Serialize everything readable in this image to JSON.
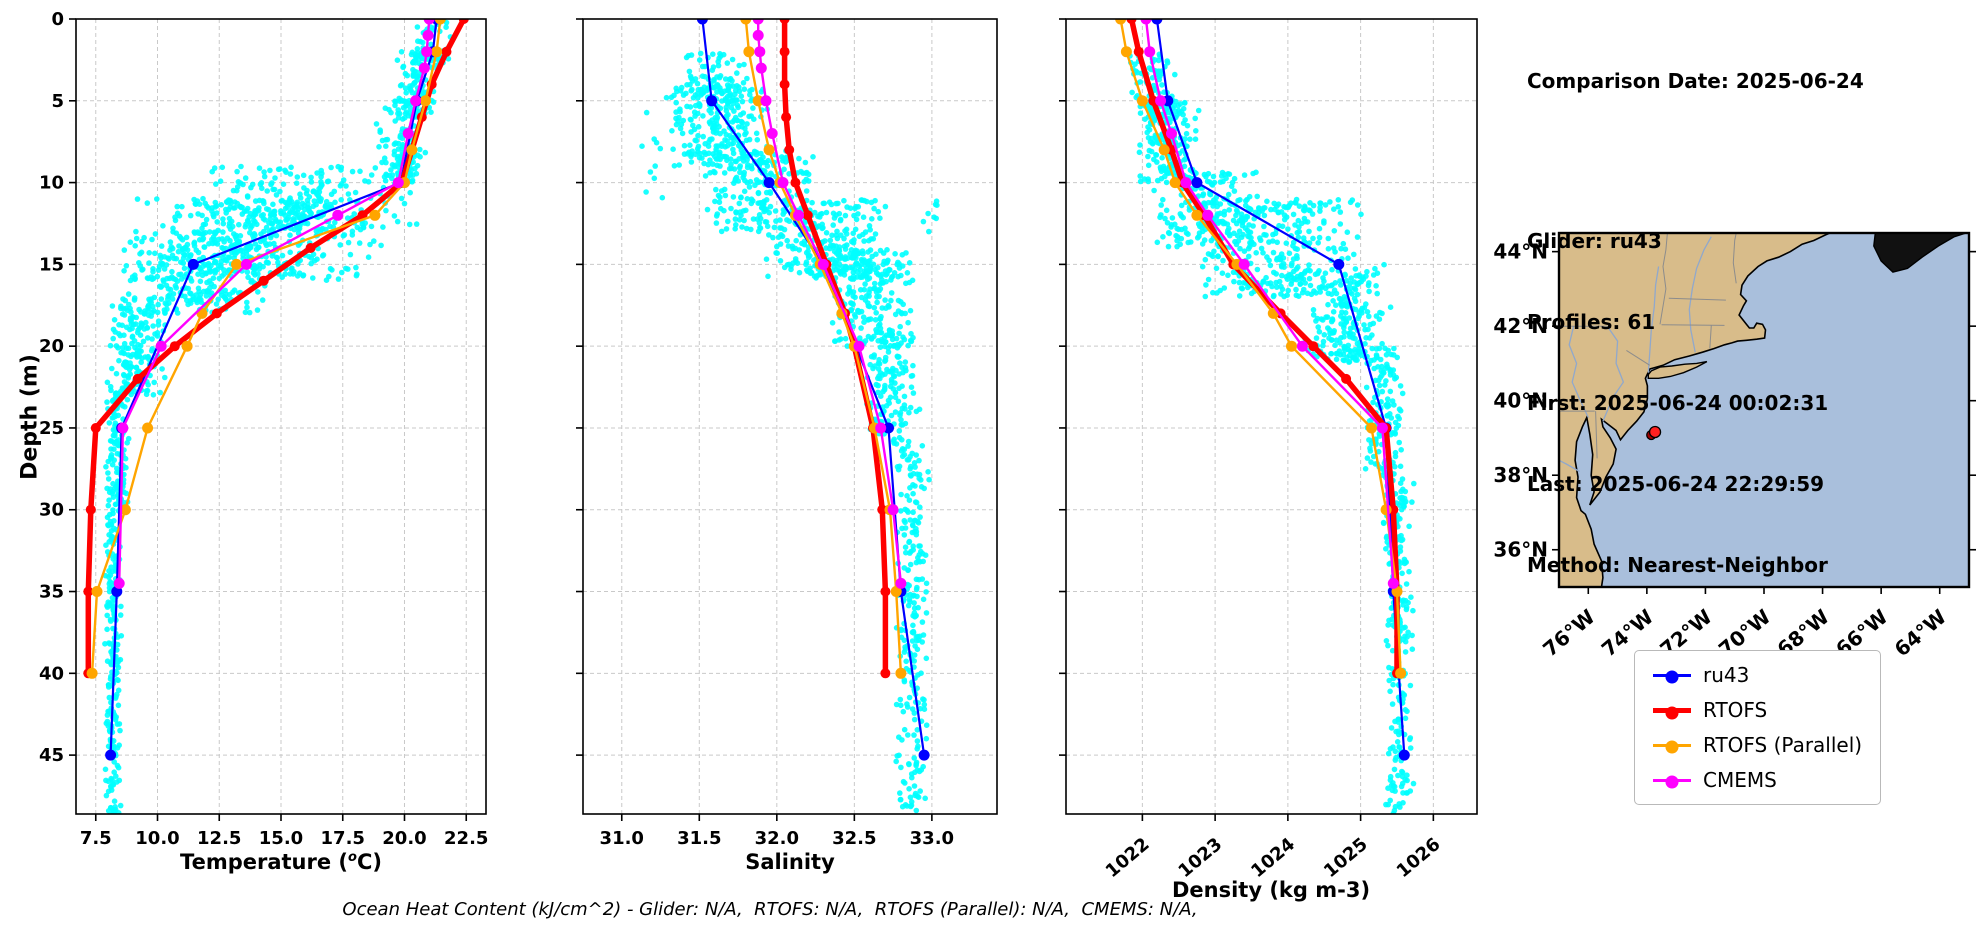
{
  "info_panel": {
    "comparison_date": "Comparison Date: 2025-06-24",
    "glider": "Glider: ru43",
    "profiles": "Profiles: 61",
    "first": "First: 2025-06-24 00:02:31",
    "last": "Last: 2025-06-24 22:29:59",
    "method": "Method: Nearest-Neighbor"
  },
  "caption": "Ocean Heat Content (kJ/cm^2) - Glider: N/A,  RTOFS: N/A,  RTOFS (Parallel): N/A,  CMEMS: N/A,",
  "legend": {
    "items": [
      {
        "label": "ru43",
        "color": "#0000ff",
        "lw": 3
      },
      {
        "label": "RTOFS",
        "color": "#ff0000",
        "lw": 5
      },
      {
        "label": "RTOFS (Parallel)",
        "color": "#ffa500",
        "lw": 3
      },
      {
        "label": "CMEMS",
        "color": "#ff00ff",
        "lw": 3
      }
    ]
  },
  "colors": {
    "scatter": "#00ffff",
    "grid": "#c9c9c9",
    "axis": "#000000",
    "land": "#d8bc8a",
    "ocean": "#a9bfdc",
    "dark_land": "#111111"
  },
  "chart_data": [
    {
      "type": "scatter",
      "panel": "temperature",
      "xlabel": "Temperature (°C)",
      "xlabel_parts": [
        "Temperature (",
        "o",
        "C)"
      ],
      "ylabel": "Depth (m)",
      "xlim": [
        6.7,
        23.3
      ],
      "ylim": [
        0,
        48.6
      ],
      "xticks": [
        7.5,
        10.0,
        12.5,
        15.0,
        17.5,
        20.0,
        22.5
      ],
      "xtick_labels": [
        "7.5",
        "10.0",
        "12.5",
        "15.0",
        "17.5",
        "20.0",
        "22.5"
      ],
      "rotate_xticks": false,
      "yticks": [
        0,
        5,
        10,
        15,
        20,
        25,
        30,
        35,
        40,
        45
      ],
      "ytick_labels": [
        "0",
        "5",
        "10",
        "15",
        "20",
        "25",
        "30",
        "35",
        "40",
        "45"
      ],
      "show_ytick_labels": true,
      "grid": "dashed",
      "scatter_bins": [
        [
          0,
          3,
          20.2,
          21.9,
          50
        ],
        [
          2,
          6,
          19.6,
          21.4,
          90
        ],
        [
          5,
          10,
          18.8,
          21.0,
          130
        ],
        [
          9,
          13,
          11.5,
          20.6,
          200
        ],
        [
          11,
          16,
          8.4,
          19.5,
          380
        ],
        [
          13,
          18,
          8.1,
          15.0,
          260
        ],
        [
          17,
          23,
          7.9,
          10.5,
          170
        ],
        [
          22,
          30,
          7.85,
          8.9,
          140
        ],
        [
          30,
          48.6,
          7.85,
          8.55,
          210
        ]
      ],
      "series": [
        {
          "name": "ru43",
          "color": "#0000ff",
          "lw": 2.2,
          "ms": 5.5,
          "points": [
            [
              0,
              21.3
            ],
            [
              2,
              21.15
            ],
            [
              5,
              20.5
            ],
            [
              10,
              19.85
            ],
            [
              15,
              11.45
            ],
            [
              25,
              8.55
            ],
            [
              35,
              8.35
            ],
            [
              45,
              8.1
            ]
          ]
        },
        {
          "name": "RTOFS",
          "color": "#ff0000",
          "lw": 5.5,
          "ms": 5,
          "points": [
            [
              0,
              22.4
            ],
            [
              2,
              21.7
            ],
            [
              4,
              21.1
            ],
            [
              6,
              20.7
            ],
            [
              8,
              20.3
            ],
            [
              10,
              19.9
            ],
            [
              12,
              18.3
            ],
            [
              14,
              16.2
            ],
            [
              16,
              14.3
            ],
            [
              18,
              12.4
            ],
            [
              20,
              10.7
            ],
            [
              22,
              9.2
            ],
            [
              25,
              7.5
            ],
            [
              30,
              7.3
            ],
            [
              35,
              7.2
            ],
            [
              40,
              7.2
            ]
          ]
        },
        {
          "name": "RTOFS (Parallel)",
          "color": "#ffa500",
          "lw": 2.4,
          "ms": 5.5,
          "points": [
            [
              0,
              21.45
            ],
            [
              2,
              21.3
            ],
            [
              5,
              20.85
            ],
            [
              8,
              20.3
            ],
            [
              10,
              20.0
            ],
            [
              12,
              18.8
            ],
            [
              15,
              13.2
            ],
            [
              18,
              11.8
            ],
            [
              20,
              11.2
            ],
            [
              25,
              9.6
            ],
            [
              30,
              8.7
            ],
            [
              35,
              7.55
            ],
            [
              40,
              7.35
            ]
          ]
        },
        {
          "name": "CMEMS",
          "color": "#ff00ff",
          "lw": 2.4,
          "ms": 5.5,
          "points": [
            [
              0,
              21.0
            ],
            [
              1,
              20.95
            ],
            [
              2,
              20.9
            ],
            [
              3,
              20.8
            ],
            [
              5,
              20.45
            ],
            [
              7,
              20.15
            ],
            [
              10,
              19.75
            ],
            [
              12,
              17.3
            ],
            [
              15,
              13.6
            ],
            [
              20,
              10.15
            ],
            [
              25,
              8.6
            ],
            [
              34.5,
              8.45
            ]
          ]
        }
      ]
    },
    {
      "type": "scatter",
      "panel": "salinity",
      "xlabel": "Salinity",
      "ylabel": "",
      "xlim": [
        30.75,
        33.42
      ],
      "ylim": [
        0,
        48.6
      ],
      "xticks": [
        31.0,
        31.5,
        32.0,
        32.5,
        33.0
      ],
      "xtick_labels": [
        "31.0",
        "31.5",
        "32.0",
        "32.5",
        "33.0"
      ],
      "rotate_xticks": false,
      "yticks": [
        0,
        5,
        10,
        15,
        20,
        25,
        30,
        35,
        40,
        45
      ],
      "ytick_labels": [
        "0",
        "5",
        "10",
        "15",
        "20",
        "25",
        "30",
        "35",
        "40",
        "45"
      ],
      "show_ytick_labels": false,
      "grid": "dashed",
      "scatter_bins": [
        [
          2,
          5,
          31.35,
          31.85,
          70
        ],
        [
          4,
          9,
          31.25,
          31.95,
          240
        ],
        [
          8,
          13,
          31.5,
          32.3,
          190
        ],
        [
          11,
          16,
          31.9,
          32.8,
          260
        ],
        [
          14,
          20,
          32.3,
          32.9,
          200
        ],
        [
          19,
          26,
          32.55,
          32.95,
          140
        ],
        [
          26,
          48.6,
          32.75,
          33.0,
          240
        ],
        [
          5,
          11,
          31.05,
          31.3,
          10
        ],
        [
          11,
          13,
          32.85,
          33.1,
          8
        ]
      ],
      "series": [
        {
          "name": "ru43",
          "color": "#0000ff",
          "lw": 2.2,
          "ms": 5.5,
          "points": [
            [
              0,
              31.52
            ],
            [
              5,
              31.58
            ],
            [
              10,
              31.95
            ],
            [
              15,
              32.3
            ],
            [
              25,
              32.72
            ],
            [
              35,
              32.8
            ],
            [
              45,
              32.95
            ]
          ]
        },
        {
          "name": "RTOFS",
          "color": "#ff0000",
          "lw": 5.5,
          "ms": 5,
          "points": [
            [
              0,
              32.05
            ],
            [
              2,
              32.05
            ],
            [
              4,
              32.05
            ],
            [
              6,
              32.06
            ],
            [
              8,
              32.08
            ],
            [
              10,
              32.12
            ],
            [
              12,
              32.2
            ],
            [
              15,
              32.32
            ],
            [
              18,
              32.44
            ],
            [
              20,
              32.5
            ],
            [
              25,
              32.62
            ],
            [
              30,
              32.68
            ],
            [
              35,
              32.7
            ],
            [
              40,
              32.7
            ]
          ]
        },
        {
          "name": "RTOFS (Parallel)",
          "color": "#ffa500",
          "lw": 2.4,
          "ms": 5.5,
          "points": [
            [
              0,
              31.8
            ],
            [
              2,
              31.82
            ],
            [
              5,
              31.88
            ],
            [
              8,
              31.95
            ],
            [
              10,
              32.02
            ],
            [
              12,
              32.12
            ],
            [
              15,
              32.28
            ],
            [
              18,
              32.42
            ],
            [
              20,
              32.5
            ],
            [
              25,
              32.63
            ],
            [
              30,
              32.73
            ],
            [
              35,
              32.77
            ],
            [
              40,
              32.8
            ]
          ]
        },
        {
          "name": "CMEMS",
          "color": "#ff00ff",
          "lw": 2.4,
          "ms": 5.5,
          "points": [
            [
              0,
              31.88
            ],
            [
              1,
              31.88
            ],
            [
              2,
              31.89
            ],
            [
              3,
              31.9
            ],
            [
              5,
              31.93
            ],
            [
              7,
              31.97
            ],
            [
              10,
              32.04
            ],
            [
              12,
              32.14
            ],
            [
              15,
              32.3
            ],
            [
              20,
              32.53
            ],
            [
              25,
              32.67
            ],
            [
              30,
              32.75
            ],
            [
              34.5,
              32.8
            ]
          ]
        }
      ]
    },
    {
      "type": "scatter",
      "panel": "density",
      "xlabel": "Density (kg m-3)",
      "ylabel": "",
      "xlim": [
        1020.95,
        1026.6
      ],
      "ylim": [
        0,
        48.6
      ],
      "xticks": [
        1022,
        1023,
        1024,
        1025,
        1026
      ],
      "xtick_labels": [
        "1022",
        "1023",
        "1024",
        "1025",
        "1026"
      ],
      "rotate_xticks": true,
      "yticks": [
        0,
        5,
        10,
        15,
        20,
        25,
        30,
        35,
        40,
        45
      ],
      "ytick_labels": [
        "0",
        "5",
        "10",
        "15",
        "20",
        "25",
        "30",
        "35",
        "40",
        "45"
      ],
      "show_ytick_labels": false,
      "grid": "dashed",
      "scatter_bins": [
        [
          2,
          6,
          1021.8,
          1022.5,
          80
        ],
        [
          5,
          10,
          1021.9,
          1022.8,
          170
        ],
        [
          9,
          14,
          1022.1,
          1023.7,
          190
        ],
        [
          11,
          17,
          1022.6,
          1025.2,
          300
        ],
        [
          15,
          21,
          1024.1,
          1025.5,
          210
        ],
        [
          20,
          28,
          1025.0,
          1025.6,
          140
        ],
        [
          28,
          48.6,
          1025.3,
          1025.75,
          240
        ]
      ],
      "series": [
        {
          "name": "ru43",
          "color": "#0000ff",
          "lw": 2.2,
          "ms": 5.5,
          "points": [
            [
              0,
              1022.2
            ],
            [
              5,
              1022.35
            ],
            [
              10,
              1022.75
            ],
            [
              15,
              1024.7
            ],
            [
              25,
              1025.35
            ],
            [
              35,
              1025.45
            ],
            [
              45,
              1025.6
            ]
          ]
        },
        {
          "name": "RTOFS",
          "color": "#ff0000",
          "lw": 5.5,
          "ms": 5,
          "points": [
            [
              0,
              1021.85
            ],
            [
              2,
              1021.95
            ],
            [
              5,
              1022.15
            ],
            [
              8,
              1022.4
            ],
            [
              10,
              1022.55
            ],
            [
              12,
              1022.85
            ],
            [
              15,
              1023.25
            ],
            [
              18,
              1023.9
            ],
            [
              20,
              1024.35
            ],
            [
              22,
              1024.8
            ],
            [
              25,
              1025.35
            ],
            [
              30,
              1025.45
            ],
            [
              35,
              1025.5
            ],
            [
              40,
              1025.5
            ]
          ]
        },
        {
          "name": "RTOFS (Parallel)",
          "color": "#ffa500",
          "lw": 2.4,
          "ms": 5.5,
          "points": [
            [
              0,
              1021.7
            ],
            [
              2,
              1021.78
            ],
            [
              5,
              1022.0
            ],
            [
              8,
              1022.3
            ],
            [
              10,
              1022.45
            ],
            [
              12,
              1022.75
            ],
            [
              15,
              1023.3
            ],
            [
              18,
              1023.8
            ],
            [
              20,
              1024.05
            ],
            [
              25,
              1025.15
            ],
            [
              30,
              1025.35
            ],
            [
              35,
              1025.5
            ],
            [
              40,
              1025.55
            ]
          ]
        },
        {
          "name": "CMEMS",
          "color": "#ff00ff",
          "lw": 2.4,
          "ms": 5.5,
          "points": [
            [
              0,
              1022.05
            ],
            [
              2,
              1022.1
            ],
            [
              5,
              1022.25
            ],
            [
              7,
              1022.4
            ],
            [
              10,
              1022.6
            ],
            [
              12,
              1022.9
            ],
            [
              15,
              1023.4
            ],
            [
              20,
              1024.2
            ],
            [
              25,
              1025.3
            ],
            [
              34.5,
              1025.45
            ]
          ]
        }
      ]
    },
    {
      "type": "map",
      "panel": "location-map",
      "extent": {
        "lon_min": -77,
        "lon_max": -63,
        "lat_min": 35,
        "lat_max": 44.5
      },
      "lon_ticks": [
        -76,
        -74,
        -72,
        -70,
        -68,
        -66,
        -64
      ],
      "lon_tick_labels": [
        "76°W",
        "74°W",
        "72°W",
        "70°W",
        "68°W",
        "66°W",
        "64°W"
      ],
      "lat_ticks": [
        36,
        38,
        40,
        42,
        44
      ],
      "lat_tick_labels": [
        "36°N",
        "38°N",
        "40°N",
        "42°N",
        "44°N"
      ],
      "markers": [
        {
          "name": "model-location-marker",
          "lon": -73.85,
          "lat": 39.08,
          "color": "#a00000",
          "r": 4.5
        },
        {
          "name": "glider-location-marker",
          "lon": -73.72,
          "lat": 39.16,
          "color": "#ff2020",
          "r": 5.5
        }
      ]
    }
  ]
}
